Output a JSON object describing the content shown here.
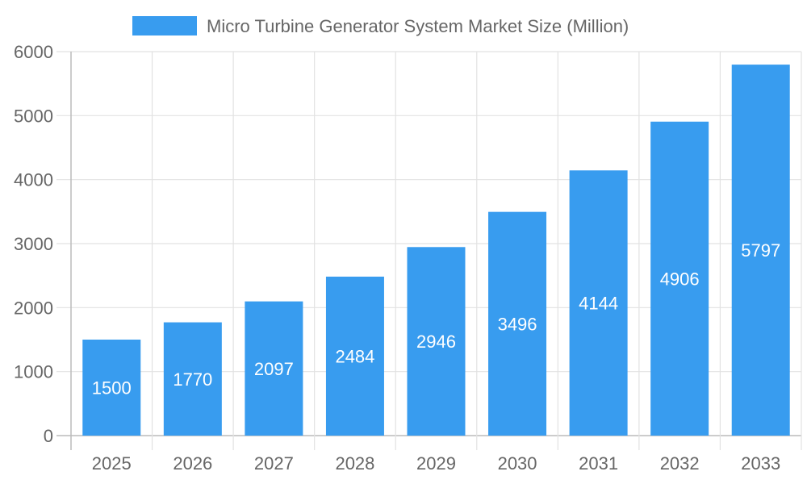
{
  "chart_data": {
    "type": "bar",
    "categories": [
      "2025",
      "2026",
      "2027",
      "2028",
      "2029",
      "2030",
      "2031",
      "2032",
      "2033"
    ],
    "series": [
      {
        "name": "Micro Turbine Generator System Market Size (Million)",
        "values": [
          1500,
          1770,
          2097,
          2484,
          2946,
          3496,
          4144,
          4906,
          5797
        ],
        "color": "#389cef"
      }
    ],
    "ylim": [
      0,
      6000
    ],
    "yticks": [
      0,
      1000,
      2000,
      3000,
      4000,
      5000,
      6000
    ],
    "grid": true,
    "legend": "top-center",
    "data_labels": true,
    "xlabel": "",
    "ylabel": ""
  }
}
